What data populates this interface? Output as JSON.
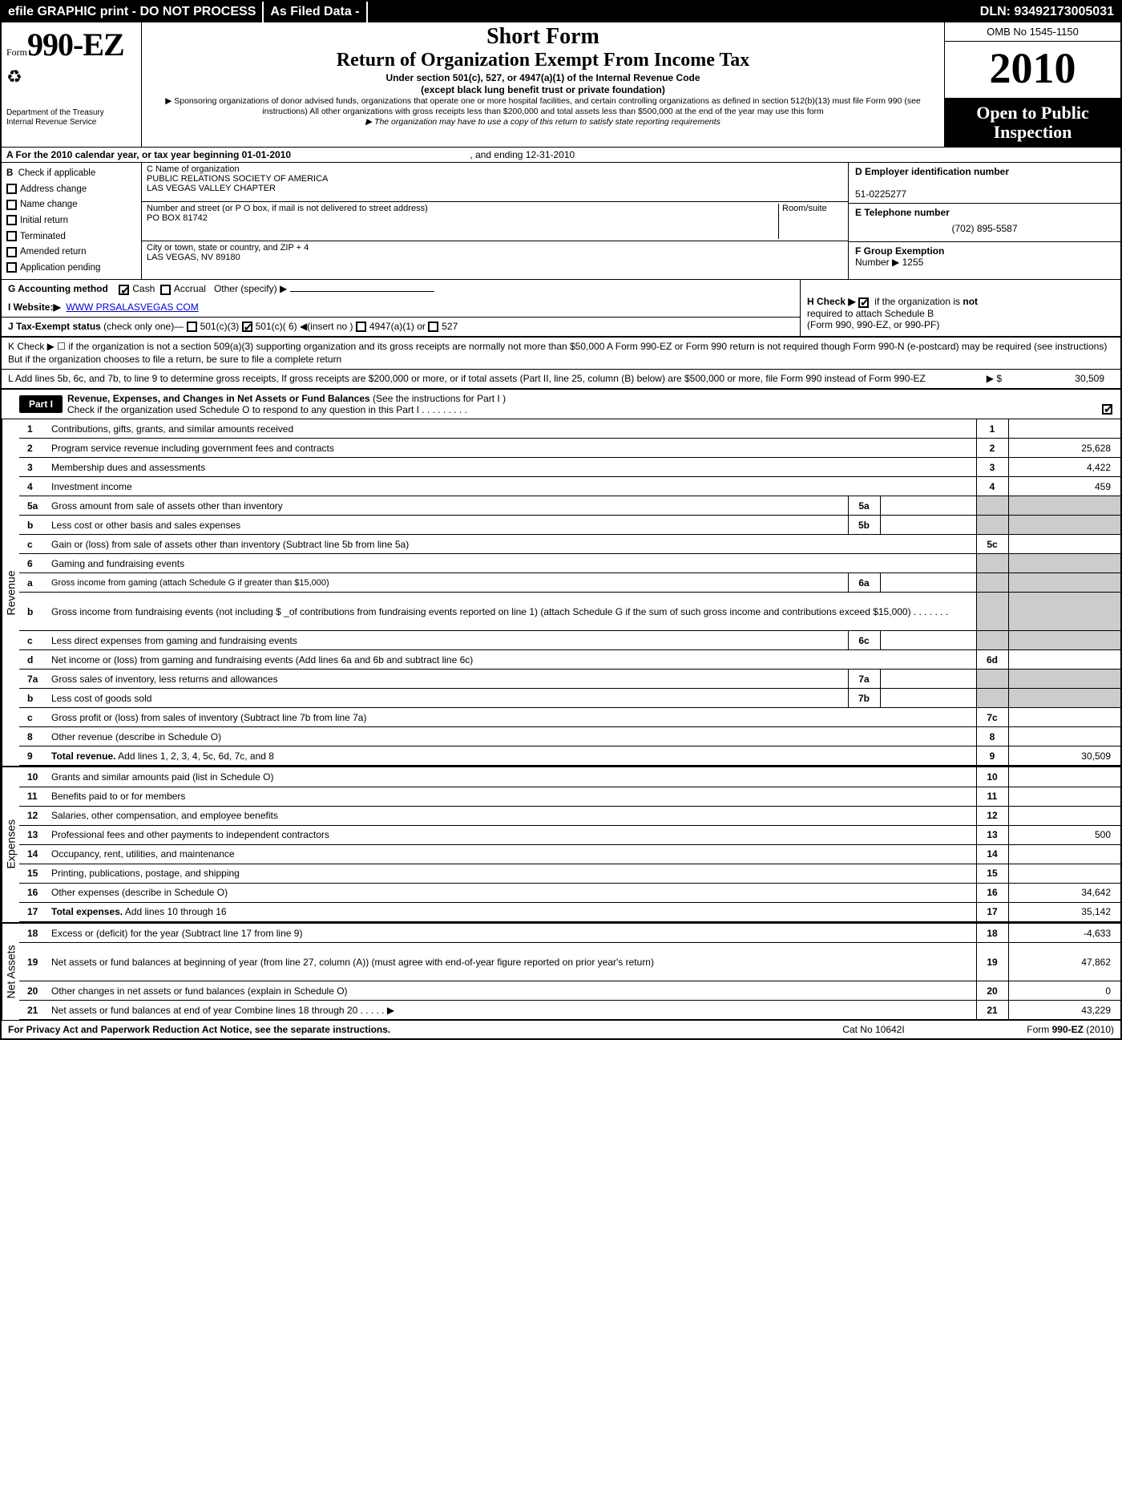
{
  "topbar": {
    "left": "efile GRAPHIC print - DO NOT PROCESS",
    "mid": "As Filed Data -",
    "right": "DLN: 93492173005031"
  },
  "header": {
    "form_prefix": "Form",
    "form_number": "990-EZ",
    "dept1": "Department of the Treasury",
    "dept2": "Internal Revenue Service",
    "short_form": "Short Form",
    "title": "Return of Organization Exempt From Income Tax",
    "sub1": "Under section 501(c), 527, or 4947(a)(1) of the Internal Revenue Code",
    "sub2": "(except black lung benefit trust or private foundation)",
    "note1": "▶ Sponsoring organizations of donor advised funds, organizations that operate one or more hospital facilities, and certain controlling organizations as defined in section 512(b)(13) must file Form 990 (see instructions) All other organizations with gross receipts less than $200,000 and total assets less than $500,000 at the end of the year may use this form",
    "note2": "▶ The organization may have to use a copy of this return to satisfy state reporting requirements",
    "omb": "OMB No 1545-1150",
    "year": "2010",
    "open_public1": "Open to Public",
    "open_public2": "Inspection"
  },
  "row_a": {
    "label": "A  For the 2010 calendar year, or tax year beginning 01-01-2010",
    "ending": ", and ending 12-31-2010"
  },
  "col_b": {
    "header": "B",
    "items": [
      "Check if applicable",
      "Address change",
      "Name change",
      "Initial return",
      "Terminated",
      "Amended return",
      "Application pending"
    ]
  },
  "col_c": {
    "c_label": "C Name of organization",
    "org_name1": "PUBLIC RELATIONS SOCIETY OF AMERICA",
    "org_name2": "LAS VEGAS VALLEY CHAPTER",
    "street_label": "Number and street (or P O box, if mail is not delivered to street address)",
    "room_label": "Room/suite",
    "street": "PO BOX 81742",
    "city_label": "City or town, state or country, and ZIP + 4",
    "city": "LAS VEGAS, NV  89180"
  },
  "col_def": {
    "d_label": "D Employer identification number",
    "d_value": "51-0225277",
    "e_label": "E Telephone number",
    "e_value": "(702) 895-5587",
    "f_label": "F Group Exemption",
    "f_label2": "Number ▶",
    "f_value": "1255"
  },
  "row_g": {
    "label": "G Accounting method",
    "cash": "Cash",
    "accrual": "Accrual",
    "other": "Other (specify) ▶"
  },
  "row_i": {
    "label": "I Website:▶",
    "value": "WWW PRSALASVEGAS COM"
  },
  "row_j": {
    "label": "J Tax-Exempt status",
    "text": "(check only one)—",
    "opt1": "501(c)(3)",
    "opt2": "501(c)( 6) ◀(insert no )",
    "opt3": "4947(a)(1) or",
    "opt4": "527"
  },
  "row_h": {
    "text1": "H  Check ▶",
    "text2": "if the organization is",
    "not": "not",
    "text3": "required to attach Schedule B",
    "text4": "(Form 990, 990-EZ, or 990-PF)"
  },
  "row_k": {
    "text": "K Check ▶ ☐  if the organization is not a section 509(a)(3) supporting organization and its gross receipts are normally not more than $50,000  A Form 990-EZ or Form 990 return is not required though Form 990-N (e-postcard) may be required (see instructions) But if the organization chooses to file a return, be sure to file a complete return"
  },
  "row_l": {
    "text": "L Add lines 5b, 6c, and 7b, to line 9 to determine gross receipts, If gross receipts are $200,000 or more, or if total assets (Part II, line 25, column (B) below) are $500,000 or more,  file Form 990 instead of Form 990-EZ",
    "arrow": "▶ $",
    "value": "30,509"
  },
  "part1": {
    "badge": "Part I",
    "title": "Revenue, Expenses, and Changes in Net Assets or Fund Balances",
    "title_note": "(See the instructions for Part I )",
    "check_line": "Check if the organization used Schedule O to respond to any question in this Part I   .    .    .    .    .    .    .    .    ."
  },
  "sections": {
    "revenue": "Revenue",
    "expenses": "Expenses",
    "netassets": "Net Assets"
  },
  "lines": [
    {
      "n": "1",
      "d": "Contributions, gifts, grants, and similar amounts received",
      "lab": "1",
      "val": ""
    },
    {
      "n": "2",
      "d": "Program service revenue including government fees and contracts",
      "lab": "2",
      "val": "25,628"
    },
    {
      "n": "3",
      "d": "Membership dues and assessments",
      "lab": "3",
      "val": "4,422"
    },
    {
      "n": "4",
      "d": "Investment income",
      "lab": "4",
      "val": "459"
    },
    {
      "n": "5a",
      "d": "Gross amount from sale of assets other than inventory",
      "sublab": "5a",
      "subval": "",
      "grey": true
    },
    {
      "n": "b",
      "d": "Less  cost or other basis and sales expenses",
      "sublab": "5b",
      "subval": "",
      "grey": true
    },
    {
      "n": "c",
      "d": "Gain or (loss) from sale of assets other than inventory (Subtract line 5b from line 5a)",
      "lab": "5c",
      "val": ""
    },
    {
      "n": "6",
      "d": "Gaming and fundraising events",
      "grey": true,
      "nobox": true
    },
    {
      "n": "a",
      "d": "Gross income from gaming (attach Schedule G if greater than $15,000)",
      "sublab": "6a",
      "subval": "",
      "grey": true,
      "small": true
    },
    {
      "n": "b",
      "d": "Gross income from fundraising events (not including $ _of contributions from fundraising events reported on line 1) (attach Schedule G if the sum of such gross income and contributions exceed $15,000)   .    .    .    .    .    .    .",
      "grey": true,
      "tall": true
    },
    {
      "n": "c",
      "d": "Less  direct expenses from gaming and fundraising events",
      "sublab": "6c",
      "subval": "",
      "grey": true
    },
    {
      "n": "d",
      "d": "Net income or (loss) from gaming and fundraising events (Add lines 6a and 6b and subtract line 6c)",
      "lab": "6d",
      "val": ""
    },
    {
      "n": "7a",
      "d": "Gross sales of inventory, less returns and allowances",
      "sublab": "7a",
      "subval": "",
      "grey": true
    },
    {
      "n": "b",
      "d": "Less  cost of goods sold",
      "sublab": "7b",
      "subval": "",
      "grey": true
    },
    {
      "n": "c",
      "d": "Gross profit or (loss) from sales of inventory (Subtract line 7b from line 7a)",
      "lab": "7c",
      "val": ""
    },
    {
      "n": "8",
      "d": "Other revenue (describe in Schedule O)",
      "lab": "8",
      "val": ""
    },
    {
      "n": "9",
      "d": "Total revenue. Add lines 1, 2, 3, 4, 5c, 6d, 7c, and 8",
      "lab": "9",
      "val": "30,509",
      "bold": true
    }
  ],
  "exp_lines": [
    {
      "n": "10",
      "d": "Grants and similar amounts paid (list in Schedule O)",
      "lab": "10",
      "val": ""
    },
    {
      "n": "11",
      "d": "Benefits paid to or for members",
      "lab": "11",
      "val": ""
    },
    {
      "n": "12",
      "d": "Salaries, other compensation, and employee benefits",
      "lab": "12",
      "val": ""
    },
    {
      "n": "13",
      "d": "Professional fees and other payments to independent contractors",
      "lab": "13",
      "val": "500"
    },
    {
      "n": "14",
      "d": "Occupancy, rent, utilities, and maintenance",
      "lab": "14",
      "val": ""
    },
    {
      "n": "15",
      "d": "Printing, publications, postage, and shipping",
      "lab": "15",
      "val": ""
    },
    {
      "n": "16",
      "d": "Other expenses (describe in Schedule O)",
      "lab": "16",
      "val": "34,642"
    },
    {
      "n": "17",
      "d": "Total expenses. Add lines 10 through 16",
      "lab": "17",
      "val": "35,142",
      "bold": true
    }
  ],
  "na_lines": [
    {
      "n": "18",
      "d": "Excess or (deficit) for the year (Subtract line 17 from line 9)",
      "lab": "18",
      "val": "-4,633"
    },
    {
      "n": "19",
      "d": "Net assets or fund balances at beginning of year (from line 27, column (A)) (must agree with end-of-year figure reported on prior year's return)",
      "lab": "19",
      "val": "47,862",
      "tall": true
    },
    {
      "n": "20",
      "d": "Other changes in net assets or fund balances (explain in Schedule O)",
      "lab": "20",
      "val": "0"
    },
    {
      "n": "21",
      "d": "Net assets or fund balances at end of year Combine lines 18 through 20   .    .    .    .    .  ▶",
      "lab": "21",
      "val": "43,229"
    }
  ],
  "footer": {
    "left": "For Privacy Act and Paperwork Reduction Act Notice, see the separate instructions.",
    "mid": "Cat No 10642I",
    "right": "Form 990-EZ (2010)"
  }
}
